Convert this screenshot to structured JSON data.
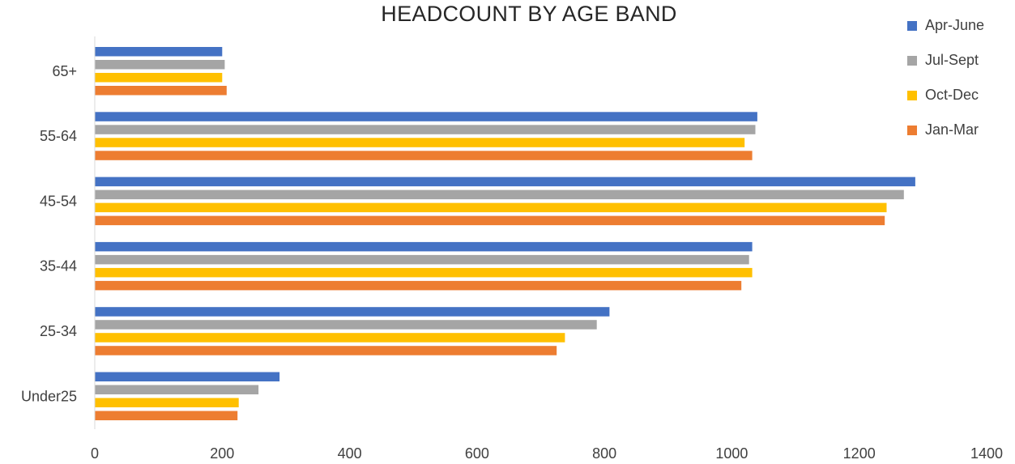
{
  "chart_data": {
    "type": "bar",
    "orientation": "horizontal",
    "title": "HEADCOUNT BY AGE BAND",
    "xlabel": "",
    "ylabel": "",
    "xlim": [
      0,
      1400
    ],
    "x_ticks": [
      "0",
      "200",
      "400",
      "600",
      "800",
      "1000",
      "1200",
      "1400"
    ],
    "categories": [
      "Under25",
      "25-34",
      "35-44",
      "45-54",
      "55-64",
      "65+"
    ],
    "series": [
      {
        "name": "Apr-June",
        "color": "#4472C4",
        "values": [
          290,
          808,
          1032,
          1288,
          1040,
          200
        ]
      },
      {
        "name": "Jul-Sept",
        "color": "#A5A5A5",
        "values": [
          257,
          788,
          1027,
          1270,
          1037,
          204
        ]
      },
      {
        "name": "Oct-Dec",
        "color": "#FFC000",
        "values": [
          226,
          738,
          1032,
          1243,
          1020,
          200
        ]
      },
      {
        "name": "Jan-Mar",
        "color": "#ED7D31",
        "values": [
          224,
          725,
          1015,
          1240,
          1032,
          207
        ]
      }
    ],
    "legend_position": "top-right",
    "grid": false
  }
}
